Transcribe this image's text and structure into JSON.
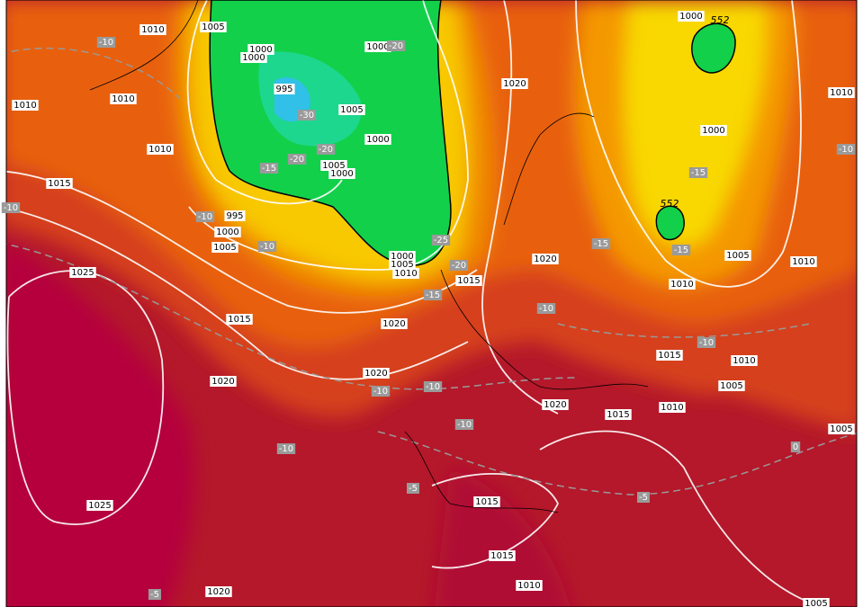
{
  "isobar_labels": [
    "1010",
    "1005",
    "1000",
    "1000",
    "995",
    "1005",
    "1000",
    "1000",
    "1005",
    "1000",
    "995",
    "1000",
    "1005",
    "1000",
    "1005",
    "1010",
    "1020",
    "1000",
    "1000",
    "1010",
    "1010",
    "1010",
    "1015",
    "1025",
    "1015",
    "1020",
    "1020",
    "1020",
    "1015",
    "1020",
    "1005",
    "1010",
    "1015",
    "1010",
    "1005",
    "1010",
    "1010",
    "1020",
    "1015",
    "1010",
    "1005",
    "1025",
    "1015",
    "1015",
    "1010",
    "1020",
    "1005"
  ],
  "temperature_labels": [
    "-10",
    "-20",
    "-30",
    "-20",
    "-20",
    "-15",
    "-10",
    "-10",
    "-25",
    "-20",
    "-15",
    "-15",
    "-15",
    "-15",
    "-10",
    "-10",
    "-10",
    "-10",
    "-10",
    "-10",
    "-5",
    "-5",
    "-5",
    "-10",
    "-10",
    "0"
  ],
  "thickness_labels": [
    "552",
    "552"
  ]
}
